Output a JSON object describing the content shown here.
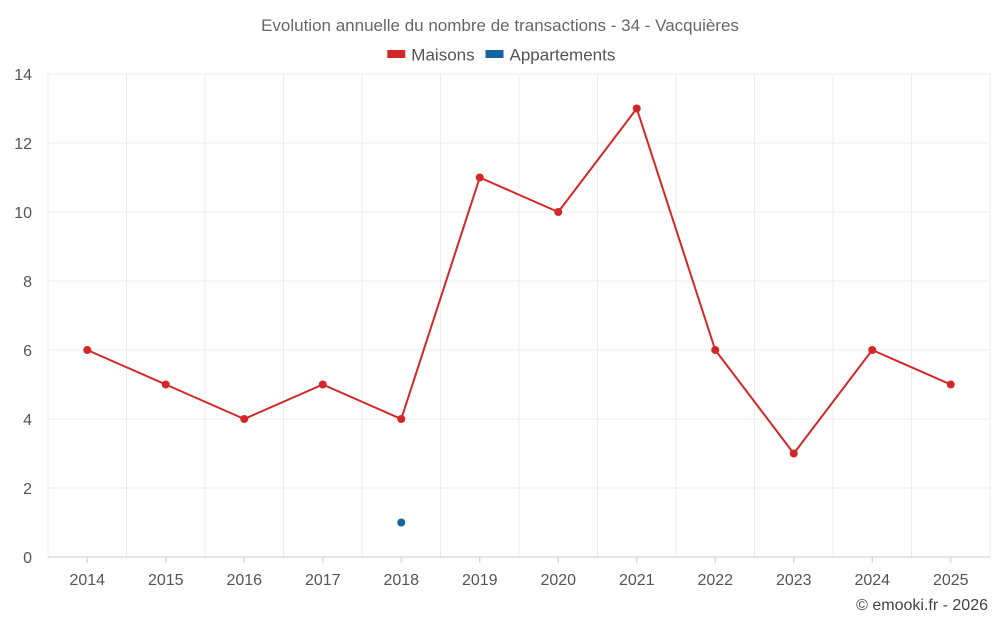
{
  "chart_data": {
    "type": "line",
    "title": "Evolution annuelle du nombre de transactions - 34 - Vacquières",
    "xlabel": "",
    "ylabel": "",
    "categories": [
      "2014",
      "2015",
      "2016",
      "2017",
      "2018",
      "2019",
      "2020",
      "2021",
      "2022",
      "2023",
      "2024",
      "2025"
    ],
    "ylim": [
      0,
      14
    ],
    "yticks": [
      0,
      2,
      4,
      6,
      8,
      10,
      12,
      14
    ],
    "grid": true,
    "legend_position": "top-center",
    "series": [
      {
        "name": "Maisons",
        "color": "#d62728",
        "values": [
          6,
          5,
          4,
          5,
          4,
          11,
          10,
          13,
          6,
          3,
          6,
          5
        ]
      },
      {
        "name": "Appartements",
        "color": "#1565a0",
        "values": [
          null,
          null,
          null,
          null,
          1,
          null,
          null,
          null,
          null,
          null,
          null,
          null
        ]
      }
    ]
  },
  "credit": "© emooki.fr - 2026"
}
